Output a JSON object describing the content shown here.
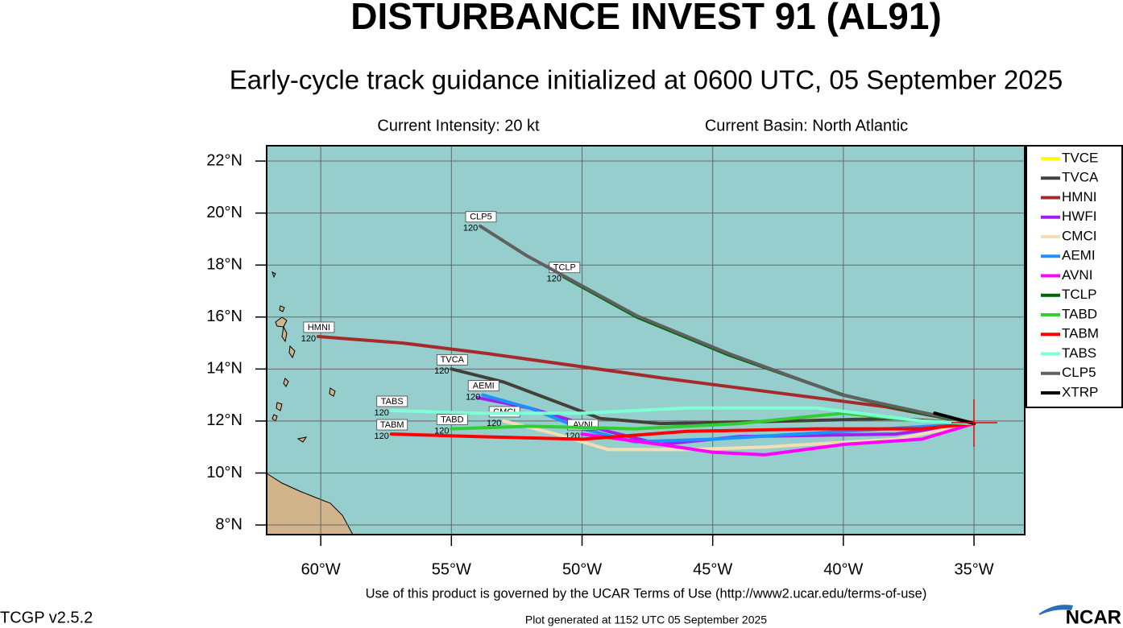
{
  "header": {
    "title": "DISTURBANCE INVEST 91 (AL91)",
    "subtitle": "Early-cycle track guidance initialized at 0600 UTC, 05 September 2025",
    "intensity": "Current Intensity: 20 kt",
    "basin": "Current Basin: North Atlantic"
  },
  "map": {
    "xlim": [
      -62.07,
      -33.06
    ],
    "ylim": [
      7.63,
      22.59
    ],
    "xticks": [
      {
        "value": -60,
        "label": "60°W"
      },
      {
        "value": -55,
        "label": "55°W"
      },
      {
        "value": -50,
        "label": "50°W"
      },
      {
        "value": -45,
        "label": "45°W"
      },
      {
        "value": -40,
        "label": "40°W"
      },
      {
        "value": -35,
        "label": "35°W"
      }
    ],
    "yticks": [
      {
        "value": 8,
        "label": "8°N"
      },
      {
        "value": 10,
        "label": "10°N"
      },
      {
        "value": 12,
        "label": "12°N"
      },
      {
        "value": 14,
        "label": "14°N"
      },
      {
        "value": 16,
        "label": "16°N"
      },
      {
        "value": 18,
        "label": "18°N"
      },
      {
        "value": 20,
        "label": "20°N"
      },
      {
        "value": 22,
        "label": "22°N"
      }
    ],
    "grid": true,
    "tracks": [
      {
        "name": "TVCE",
        "color": "#ffff00",
        "lon": [
          -35.0,
          -38,
          -42,
          -47,
          -49.3,
          -53,
          -55
        ],
        "lat": [
          11.9,
          12.1,
          12.0,
          11.9,
          12.1,
          13.5,
          14.0
        ]
      },
      {
        "name": "TVCA",
        "color": "#404040",
        "lon": [
          -35.0,
          -38,
          -42,
          -47,
          -49.3,
          -53,
          -55
        ],
        "lat": [
          11.9,
          12.1,
          12.0,
          11.9,
          12.1,
          13.5,
          14.0
        ],
        "end_label": "120"
      },
      {
        "name": "HMNI",
        "color": "#a52a2a",
        "lon": [
          -35.0,
          -38.4,
          -46.9,
          -53.65,
          -56.85,
          -60.1
        ],
        "lat": [
          11.9,
          12.55,
          13.65,
          14.6,
          15.0,
          15.25
        ],
        "end_label": "120"
      },
      {
        "name": "HWFI",
        "color": "#a020f0",
        "lon": [
          -35.0,
          -38,
          -44,
          -47,
          -49,
          -52,
          -54
        ],
        "lat": [
          11.9,
          11.5,
          11.4,
          11.1,
          11.6,
          12.5,
          12.9
        ]
      },
      {
        "name": "CMCI",
        "color": "#f5deb3",
        "lon": [
          -35.0,
          -38,
          -43,
          -46,
          -49,
          -51,
          -53
        ],
        "lat": [
          11.9,
          11.3,
          11.0,
          10.9,
          10.9,
          11.5,
          12.0
        ],
        "end_label": "120"
      },
      {
        "name": "AEMI",
        "color": "#1e90ff",
        "lon": [
          -35.0,
          -40,
          -45,
          -48,
          -50,
          -52,
          -53.8
        ],
        "lat": [
          11.9,
          11.6,
          11.3,
          11.2,
          11.7,
          12.5,
          13.0
        ],
        "end_label": "120"
      },
      {
        "name": "AVNI",
        "color": "#ff00ff",
        "lon": [
          -35.0,
          -37,
          -40,
          -43,
          -45,
          -47,
          -50
        ],
        "lat": [
          11.9,
          11.3,
          11.1,
          10.7,
          10.8,
          11.1,
          11.5
        ],
        "end_label": "120"
      },
      {
        "name": "TCLP",
        "color": "#006400",
        "lon": [
          -35.0,
          -37.5,
          -40,
          -44.4,
          -47.9,
          -50.7
        ],
        "lat": [
          11.9,
          12.4,
          13.0,
          14.55,
          16.0,
          17.55
        ],
        "end_label": "120"
      },
      {
        "name": "TABD",
        "color": "#32cd32",
        "lon": [
          -35.0,
          -37,
          -40,
          -44,
          -48,
          -52,
          -55
        ],
        "lat": [
          11.9,
          12.0,
          12.3,
          11.9,
          11.7,
          11.8,
          11.7
        ],
        "end_label": "120"
      },
      {
        "name": "TABM",
        "color": "#ff0000",
        "lon": [
          -35.0,
          -37,
          -41,
          -46,
          -50,
          -54,
          -57.3
        ],
        "lat": [
          11.9,
          11.7,
          11.7,
          11.6,
          11.3,
          11.4,
          11.5
        ],
        "end_label": "120"
      },
      {
        "name": "TABS",
        "color": "#7fffd4",
        "lon": [
          -35.0,
          -37,
          -41,
          -46,
          -50,
          -54,
          -57.3
        ],
        "lat": [
          11.9,
          12.0,
          12.5,
          12.5,
          12.3,
          12.3,
          12.4
        ],
        "end_label": "120"
      },
      {
        "name": "CLP5",
        "color": "#606060",
        "lon": [
          -35.0,
          -40.05,
          -44.4,
          -47.9,
          -52.1,
          -53.9
        ],
        "lat": [
          11.9,
          13.0,
          14.6,
          16.05,
          18.35,
          19.5
        ],
        "end_label": "120"
      },
      {
        "name": "XTRP",
        "color": "#000000",
        "lon": [
          -35.0,
          -36.5
        ],
        "lat": [
          11.9,
          12.3
        ]
      }
    ]
  },
  "footer": {
    "terms": "Use of this product is governed by the UCAR Terms of Use (http://www2.ucar.edu/terms-of-use)",
    "version": "TCGP v2.5.2",
    "generated": "Plot generated at 1152 UTC   05 September 2025",
    "logo": "NCAR"
  }
}
